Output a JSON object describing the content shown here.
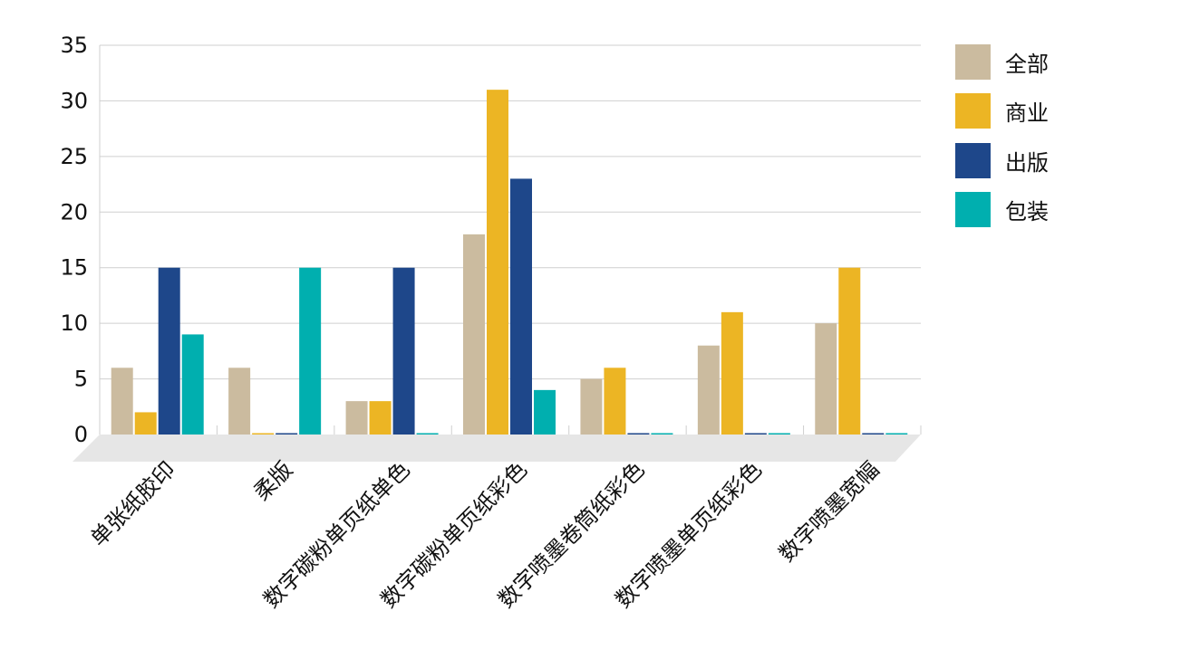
{
  "chart_data": {
    "type": "bar",
    "categories": [
      "单张纸胶印",
      "柔版",
      "数字碳粉单页纸单色",
      "数字碳粉单页纸彩色",
      "数字喷墨卷筒纸彩色",
      "数字喷墨单页纸彩色",
      "数字喷墨宽幅"
    ],
    "series": [
      {
        "name": "全部",
        "color": "#cbbb9f",
        "values": [
          6,
          6,
          3,
          18,
          5,
          8,
          10
        ]
      },
      {
        "name": "商业",
        "color": "#ecb524",
        "values": [
          2,
          0,
          3,
          31,
          6,
          11,
          15
        ]
      },
      {
        "name": "出版",
        "color": "#1e478a",
        "values": [
          15,
          0,
          15,
          23,
          0,
          0,
          0
        ]
      },
      {
        "name": "包装",
        "color": "#00afaf",
        "values": [
          9,
          15,
          0,
          4,
          0,
          0,
          0
        ]
      }
    ],
    "yticks": [
      "0",
      "5",
      "10",
      "15",
      "20",
      "25",
      "30",
      "35"
    ],
    "ylim": [
      0,
      35
    ],
    "grid": true,
    "legend_position": "right",
    "floor_color": "#e6e6e6",
    "grid_color": "#cfcfcf"
  }
}
